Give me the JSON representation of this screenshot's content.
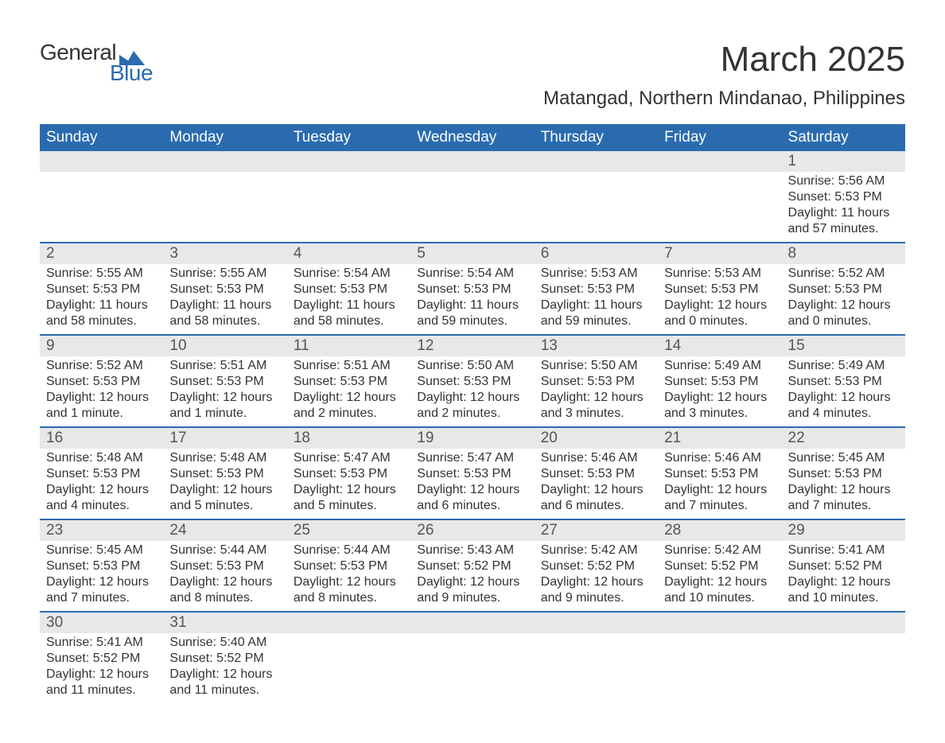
{
  "logo": {
    "text_top": "General",
    "text_bottom": "Blue",
    "shape_color": "#2a6bb0",
    "text_color": "#333333"
  },
  "title": "March 2025",
  "location": "Matangad, Northern Mindanao, Philippines",
  "colors": {
    "header_bg": "#2a6bb0",
    "header_text": "#ffffff",
    "day_number_bg": "#e8e8e8",
    "day_number_text": "#555555",
    "body_text": "#333333",
    "row_divider": "#2a6bb0",
    "background": "#ffffff"
  },
  "fonts": {
    "title_pt": 44,
    "location_pt": 24,
    "weekday_pt": 19,
    "daynum_pt": 19,
    "body_pt": 16
  },
  "weekdays": [
    "Sunday",
    "Monday",
    "Tuesday",
    "Wednesday",
    "Thursday",
    "Friday",
    "Saturday"
  ],
  "first_weekday_index": 6,
  "days": [
    {
      "n": 1,
      "sunrise": "5:56 AM",
      "sunset": "5:53 PM",
      "daylight": "11 hours and 57 minutes."
    },
    {
      "n": 2,
      "sunrise": "5:55 AM",
      "sunset": "5:53 PM",
      "daylight": "11 hours and 58 minutes."
    },
    {
      "n": 3,
      "sunrise": "5:55 AM",
      "sunset": "5:53 PM",
      "daylight": "11 hours and 58 minutes."
    },
    {
      "n": 4,
      "sunrise": "5:54 AM",
      "sunset": "5:53 PM",
      "daylight": "11 hours and 58 minutes."
    },
    {
      "n": 5,
      "sunrise": "5:54 AM",
      "sunset": "5:53 PM",
      "daylight": "11 hours and 59 minutes."
    },
    {
      "n": 6,
      "sunrise": "5:53 AM",
      "sunset": "5:53 PM",
      "daylight": "11 hours and 59 minutes."
    },
    {
      "n": 7,
      "sunrise": "5:53 AM",
      "sunset": "5:53 PM",
      "daylight": "12 hours and 0 minutes."
    },
    {
      "n": 8,
      "sunrise": "5:52 AM",
      "sunset": "5:53 PM",
      "daylight": "12 hours and 0 minutes."
    },
    {
      "n": 9,
      "sunrise": "5:52 AM",
      "sunset": "5:53 PM",
      "daylight": "12 hours and 1 minute."
    },
    {
      "n": 10,
      "sunrise": "5:51 AM",
      "sunset": "5:53 PM",
      "daylight": "12 hours and 1 minute."
    },
    {
      "n": 11,
      "sunrise": "5:51 AM",
      "sunset": "5:53 PM",
      "daylight": "12 hours and 2 minutes."
    },
    {
      "n": 12,
      "sunrise": "5:50 AM",
      "sunset": "5:53 PM",
      "daylight": "12 hours and 2 minutes."
    },
    {
      "n": 13,
      "sunrise": "5:50 AM",
      "sunset": "5:53 PM",
      "daylight": "12 hours and 3 minutes."
    },
    {
      "n": 14,
      "sunrise": "5:49 AM",
      "sunset": "5:53 PM",
      "daylight": "12 hours and 3 minutes."
    },
    {
      "n": 15,
      "sunrise": "5:49 AM",
      "sunset": "5:53 PM",
      "daylight": "12 hours and 4 minutes."
    },
    {
      "n": 16,
      "sunrise": "5:48 AM",
      "sunset": "5:53 PM",
      "daylight": "12 hours and 4 minutes."
    },
    {
      "n": 17,
      "sunrise": "5:48 AM",
      "sunset": "5:53 PM",
      "daylight": "12 hours and 5 minutes."
    },
    {
      "n": 18,
      "sunrise": "5:47 AM",
      "sunset": "5:53 PM",
      "daylight": "12 hours and 5 minutes."
    },
    {
      "n": 19,
      "sunrise": "5:47 AM",
      "sunset": "5:53 PM",
      "daylight": "12 hours and 6 minutes."
    },
    {
      "n": 20,
      "sunrise": "5:46 AM",
      "sunset": "5:53 PM",
      "daylight": "12 hours and 6 minutes."
    },
    {
      "n": 21,
      "sunrise": "5:46 AM",
      "sunset": "5:53 PM",
      "daylight": "12 hours and 7 minutes."
    },
    {
      "n": 22,
      "sunrise": "5:45 AM",
      "sunset": "5:53 PM",
      "daylight": "12 hours and 7 minutes."
    },
    {
      "n": 23,
      "sunrise": "5:45 AM",
      "sunset": "5:53 PM",
      "daylight": "12 hours and 7 minutes."
    },
    {
      "n": 24,
      "sunrise": "5:44 AM",
      "sunset": "5:53 PM",
      "daylight": "12 hours and 8 minutes."
    },
    {
      "n": 25,
      "sunrise": "5:44 AM",
      "sunset": "5:53 PM",
      "daylight": "12 hours and 8 minutes."
    },
    {
      "n": 26,
      "sunrise": "5:43 AM",
      "sunset": "5:52 PM",
      "daylight": "12 hours and 9 minutes."
    },
    {
      "n": 27,
      "sunrise": "5:42 AM",
      "sunset": "5:52 PM",
      "daylight": "12 hours and 9 minutes."
    },
    {
      "n": 28,
      "sunrise": "5:42 AM",
      "sunset": "5:52 PM",
      "daylight": "12 hours and 10 minutes."
    },
    {
      "n": 29,
      "sunrise": "5:41 AM",
      "sunset": "5:52 PM",
      "daylight": "12 hours and 10 minutes."
    },
    {
      "n": 30,
      "sunrise": "5:41 AM",
      "sunset": "5:52 PM",
      "daylight": "12 hours and 11 minutes."
    },
    {
      "n": 31,
      "sunrise": "5:40 AM",
      "sunset": "5:52 PM",
      "daylight": "12 hours and 11 minutes."
    }
  ],
  "labels": {
    "sunrise": "Sunrise: ",
    "sunset": "Sunset: ",
    "daylight": "Daylight: "
  }
}
